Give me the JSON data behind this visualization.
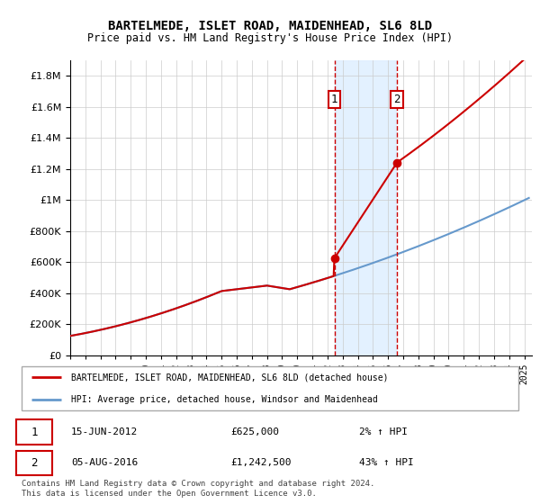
{
  "title": "BARTELMEDE, ISLET ROAD, MAIDENHEAD, SL6 8LD",
  "subtitle": "Price paid vs. HM Land Registry's House Price Index (HPI)",
  "legend_line1": "BARTELMEDE, ISLET ROAD, MAIDENHEAD, SL6 8LD (detached house)",
  "legend_line2": "HPI: Average price, detached house, Windsor and Maidenhead",
  "annotation1_date": "15-JUN-2012",
  "annotation1_price": "£625,000",
  "annotation1_hpi": "2% ↑ HPI",
  "annotation2_date": "05-AUG-2016",
  "annotation2_price": "£1,242,500",
  "annotation2_hpi": "43% ↑ HPI",
  "purchase1_year": 2012.45,
  "purchase1_value": 625000,
  "purchase2_year": 2016.59,
  "purchase2_value": 1242500,
  "footer": "Contains HM Land Registry data © Crown copyright and database right 2024.\nThis data is licensed under the Open Government Licence v3.0.",
  "red_color": "#cc0000",
  "blue_color": "#6699cc",
  "shade_color": "#ddeeff",
  "ylim_min": 0,
  "ylim_max": 1900000,
  "xlim_min": 1995,
  "xlim_max": 2025.5
}
